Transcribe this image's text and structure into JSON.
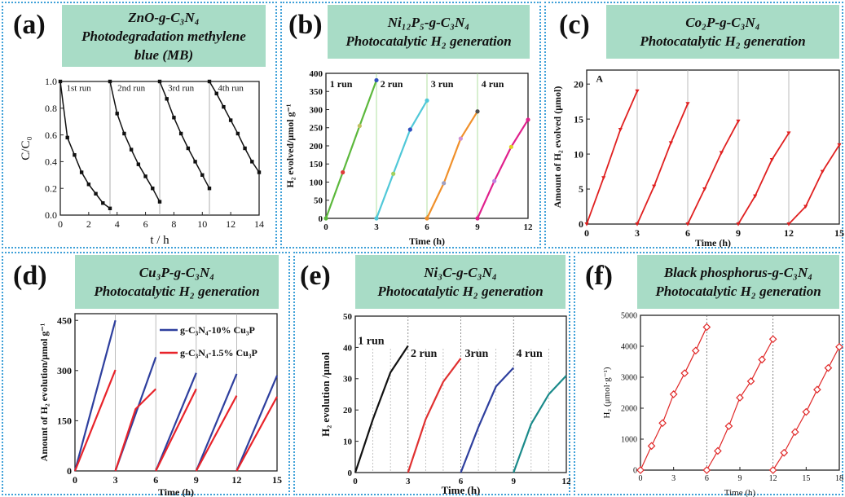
{
  "panels": [
    {
      "label": "(a)",
      "title_line1": "ZnO-g-C₃N₄",
      "title_line2": "Photodegradation methylene",
      "title_line3": "blue (MB)"
    },
    {
      "label": "(b)",
      "title_line1": "Ni₁₂P₅-g-C₃N₄",
      "title_line2": "Photocatalytic H₂ generation"
    },
    {
      "label": "(c)",
      "title_line1": "Co₂P-g-C₃N₄",
      "title_line2": "Photocatalytic H₂ generation"
    },
    {
      "label": "(d)",
      "title_line1": "Cu₃P-g-C₃N₄",
      "title_line2": "Photocatalytic H₂ generation"
    },
    {
      "label": "(e)",
      "title_line1": "Ni₃C-g-C₃N₄",
      "title_line2": "Photocatalytic H₂ generation"
    },
    {
      "label": "(f)",
      "title_line1": "Black phosphorus-g-C₃N₄",
      "title_line2": "Photocatalytic H₂ generation"
    }
  ],
  "chart_data": [
    {
      "type": "line",
      "xlabel": "t / h",
      "ylabel": "C/C₀",
      "xlim": [
        0,
        14
      ],
      "ylim": [
        0,
        1.0
      ],
      "xticks": [
        0,
        2,
        4,
        6,
        8,
        10,
        12,
        14
      ],
      "yticks": [
        0.0,
        0.2,
        0.4,
        0.6,
        0.8,
        1.0
      ],
      "ytick_labels": [
        "0.0",
        "0.2",
        "0.4",
        "0.6",
        "0.8",
        "1.0"
      ],
      "annotations": [
        "1st run",
        "2nd run",
        "3rd run",
        "4th run"
      ],
      "color": "#111111",
      "series": [
        {
          "x": [
            0,
            0.5,
            1.0,
            1.5,
            2.0,
            2.5,
            3.0,
            3.5
          ],
          "y": [
            1.0,
            0.58,
            0.45,
            0.32,
            0.23,
            0.16,
            0.09,
            0.05
          ]
        },
        {
          "x": [
            3.5,
            4.0,
            4.5,
            5.0,
            5.5,
            6.0,
            6.5,
            7.0
          ],
          "y": [
            1.0,
            0.76,
            0.61,
            0.49,
            0.38,
            0.29,
            0.2,
            0.1
          ]
        },
        {
          "x": [
            7.0,
            7.5,
            8.0,
            8.5,
            9.0,
            9.5,
            10.0,
            10.5
          ],
          "y": [
            1.0,
            0.87,
            0.73,
            0.61,
            0.5,
            0.4,
            0.3,
            0.2
          ]
        },
        {
          "x": [
            10.5,
            11.0,
            11.5,
            12.0,
            12.5,
            13.0,
            13.5,
            14.0
          ],
          "y": [
            1.0,
            0.91,
            0.81,
            0.71,
            0.61,
            0.5,
            0.4,
            0.32
          ]
        }
      ],
      "vlines": [
        3.5,
        7.0,
        10.5
      ]
    },
    {
      "type": "line",
      "xlabel": "Time (h)",
      "ylabel": "H₂ evolved/μmol g⁻¹",
      "xlim": [
        0,
        12
      ],
      "ylim": [
        0,
        400
      ],
      "xticks": [
        0,
        3,
        6,
        9,
        12
      ],
      "yticks": [
        0,
        50,
        100,
        150,
        200,
        250,
        300,
        350,
        400
      ],
      "annotations": [
        "1 run",
        "2 run",
        "3 run",
        "4 run"
      ],
      "series": [
        {
          "x": [
            0,
            1,
            2,
            3
          ],
          "y": [
            0,
            127,
            255,
            381
          ],
          "color": "#5cb83c",
          "marker_colors": [
            "#5cb83c",
            "#e03a3a",
            "#c0c060",
            "#3050c0"
          ]
        },
        {
          "x": [
            3,
            4,
            5,
            6
          ],
          "y": [
            0,
            123,
            245,
            325
          ],
          "color": "#50c8d8",
          "marker_colors": [
            "#50c8d8",
            "#a0d060",
            "#3050c0",
            "#50c8d8"
          ]
        },
        {
          "x": [
            6,
            7,
            8,
            9
          ],
          "y": [
            0,
            97,
            220,
            295
          ],
          "color": "#f0902a",
          "marker_colors": [
            "#f0902a",
            "#a0a0c0",
            "#d090d0",
            "#505050"
          ]
        },
        {
          "x": [
            9,
            10,
            11,
            12
          ],
          "y": [
            0,
            103,
            197,
            272
          ],
          "color": "#e0208c",
          "marker_colors": [
            "#e0208c",
            "#c080e0",
            "#e0d020",
            "#e0208c"
          ]
        }
      ],
      "vlines": [
        3,
        6,
        9
      ]
    },
    {
      "type": "line",
      "xlabel": "Time (h)",
      "ylabel": "Amount of H₂ evolved (μmol)",
      "xlim": [
        0,
        15
      ],
      "ylim": [
        0,
        22
      ],
      "xticks": [
        0,
        3,
        6,
        9,
        12,
        15
      ],
      "yticks": [
        0,
        5,
        10,
        15,
        20
      ],
      "annotations": [
        "A"
      ],
      "color": "#e02020",
      "series": [
        {
          "x": [
            0,
            1,
            2,
            3
          ],
          "y": [
            0,
            6.6,
            13.5,
            19.0
          ]
        },
        {
          "x": [
            3,
            4,
            5,
            6
          ],
          "y": [
            0,
            5.4,
            11.6,
            17.2
          ]
        },
        {
          "x": [
            6,
            7,
            8,
            9
          ],
          "y": [
            0,
            5.0,
            10.2,
            14.7
          ]
        },
        {
          "x": [
            9,
            10,
            11,
            12
          ],
          "y": [
            0,
            4.0,
            9.2,
            13.0
          ]
        },
        {
          "x": [
            12,
            13,
            14,
            15
          ],
          "y": [
            0,
            2.5,
            7.5,
            11.3
          ]
        }
      ],
      "vlines": [
        3,
        6,
        9,
        12
      ]
    },
    {
      "type": "line",
      "xlabel": "Time (h)",
      "ylabel": "Amount of H₂ evolution/μmol g⁻¹",
      "xlim": [
        0,
        15
      ],
      "ylim": [
        0,
        470
      ],
      "xticks": [
        0,
        3,
        6,
        9,
        12,
        15
      ],
      "yticks": [
        0,
        150,
        300,
        450
      ],
      "series": [
        {
          "name": "g-C₃N₄-10% Cu₃P",
          "color": "#2e3f9e",
          "segments": [
            {
              "x": [
                0,
                3
              ],
              "y": [
                0,
                450
              ]
            },
            {
              "x": [
                3,
                6
              ],
              "y": [
                0,
                340
              ]
            },
            {
              "x": [
                6,
                9
              ],
              "y": [
                0,
                293
              ]
            },
            {
              "x": [
                9,
                12
              ],
              "y": [
                0,
                290
              ]
            },
            {
              "x": [
                12,
                15
              ],
              "y": [
                0,
                285
              ]
            }
          ]
        },
        {
          "name": "g-C₃N₄-1.5% Cu₃P",
          "color": "#e8232a",
          "segments": [
            {
              "x": [
                0,
                3
              ],
              "y": [
                0,
                302
              ]
            },
            {
              "x": [
                3,
                4.5,
                6
              ],
              "y": [
                0,
                185,
                245
              ]
            },
            {
              "x": [
                6,
                9
              ],
              "y": [
                0,
                245
              ]
            },
            {
              "x": [
                9,
                12
              ],
              "y": [
                0,
                225
              ]
            },
            {
              "x": [
                12,
                15
              ],
              "y": [
                0,
                222
              ]
            }
          ]
        }
      ],
      "vlines": [
        3,
        6,
        9,
        12
      ]
    },
    {
      "type": "line",
      "xlabel": "Time (h)",
      "ylabel": "H₂ evolution /μmol",
      "xlim": [
        0,
        12
      ],
      "ylim": [
        0,
        50
      ],
      "xticks": [
        0,
        3,
        6,
        9,
        12
      ],
      "yticks": [
        0,
        10,
        20,
        30,
        40,
        50
      ],
      "annotations": [
        "1 run",
        "2 run",
        "3run",
        "4 run"
      ],
      "series": [
        {
          "x": [
            0,
            1,
            2,
            3
          ],
          "y": [
            0,
            17,
            32,
            40.5
          ],
          "color": "#111111"
        },
        {
          "x": [
            3,
            4,
            5,
            6
          ],
          "y": [
            0,
            17,
            29,
            36.5
          ],
          "color": "#e03030"
        },
        {
          "x": [
            6,
            7,
            8,
            9
          ],
          "y": [
            0,
            14.5,
            27.5,
            33.5
          ],
          "color": "#2e3f9e"
        },
        {
          "x": [
            9,
            10,
            11,
            12
          ],
          "y": [
            0,
            15.5,
            25,
            31
          ],
          "color": "#1a8a8a"
        }
      ],
      "vlines": [
        3,
        6,
        9
      ],
      "minor_vlines": [
        1,
        2,
        4,
        5,
        7,
        8,
        10,
        11
      ]
    },
    {
      "type": "line",
      "xlabel": "Time (h)",
      "ylabel": "H₂ (μmol·g⁻¹)",
      "xlim": [
        0,
        18
      ],
      "ylim": [
        0,
        5000
      ],
      "xticks": [
        0,
        3,
        6,
        9,
        12,
        15,
        18
      ],
      "yticks": [
        0,
        1000,
        2000,
        3000,
        4000,
        5000
      ],
      "color": "#e02828",
      "series": [
        {
          "x": [
            0,
            1,
            2,
            3,
            4,
            5,
            6
          ],
          "y": [
            0,
            780,
            1520,
            2450,
            3130,
            3860,
            4620
          ]
        },
        {
          "x": [
            6,
            7,
            8,
            9,
            10,
            11,
            12
          ],
          "y": [
            0,
            620,
            1420,
            2340,
            2870,
            3570,
            4230
          ]
        },
        {
          "x": [
            12,
            13,
            14,
            15,
            16,
            17,
            18
          ],
          "y": [
            0,
            560,
            1230,
            1880,
            2600,
            3300,
            3980
          ]
        }
      ],
      "vlines": [
        6,
        12
      ]
    }
  ]
}
